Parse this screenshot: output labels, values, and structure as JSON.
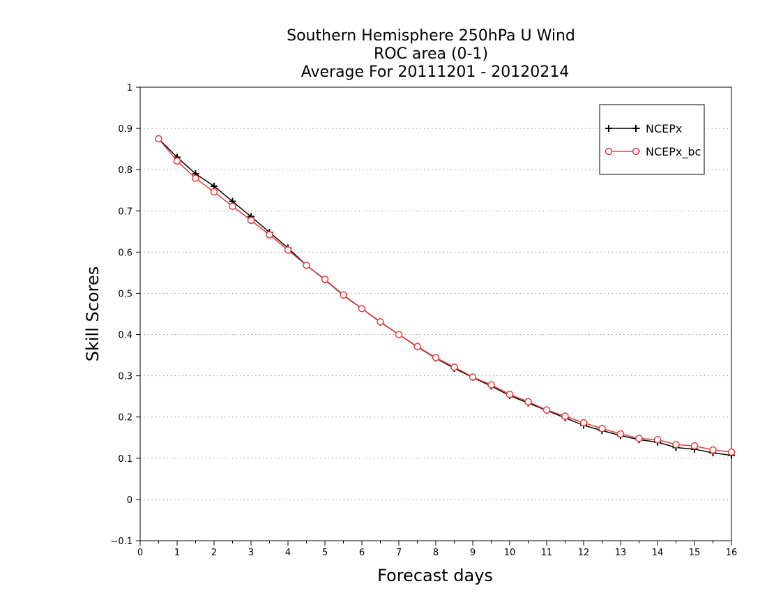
{
  "chart_data": {
    "type": "line",
    "title": [
      "Southern Hemisphere 250hPa U Wind",
      "ROC area (0-1)",
      "Average For 20111201 - 20120214"
    ],
    "xlabel": "Forecast days",
    "ylabel": "Skill Scores",
    "xlim": [
      0,
      16
    ],
    "ylim": [
      -0.1,
      1
    ],
    "x_ticks": [
      0,
      1,
      2,
      3,
      4,
      5,
      6,
      7,
      8,
      9,
      10,
      11,
      12,
      13,
      14,
      15,
      16
    ],
    "y_ticks": [
      -0.1,
      0,
      0.1,
      0.2,
      0.3,
      0.4,
      0.5,
      0.6,
      0.7,
      0.8,
      0.9,
      1
    ],
    "y_tick_labels": [
      "−0.1",
      "0",
      "0.1",
      "0.2",
      "0.3",
      "0.4",
      "0.5",
      "0.6",
      "0.7",
      "0.8",
      "0.9",
      "1"
    ],
    "grid": "horizontal dotted",
    "legend_position": "top-right",
    "x": [
      0.5,
      1,
      1.5,
      2,
      2.5,
      3,
      3.5,
      4,
      4.5,
      5,
      5.5,
      6,
      6.5,
      7,
      7.5,
      8,
      8.5,
      9,
      9.5,
      10,
      10.5,
      11,
      11.5,
      12,
      12.5,
      13,
      13.5,
      14,
      14.5,
      15,
      15.5,
      16
    ],
    "series": [
      {
        "name": "NCEPx",
        "color": "#000000",
        "marker": "plus",
        "values": [
          0.875,
          0.83,
          0.79,
          0.76,
          0.723,
          0.686,
          0.648,
          0.61,
          0.568,
          0.533,
          0.495,
          0.463,
          0.43,
          0.4,
          0.37,
          0.343,
          0.318,
          0.296,
          0.275,
          0.252,
          0.234,
          0.216,
          0.198,
          0.18,
          0.167,
          0.155,
          0.145,
          0.139,
          0.126,
          0.122,
          0.113,
          0.107
        ]
      },
      {
        "name": "NCEPx_bc",
        "color": "#e8393a",
        "marker": "circle",
        "values": [
          0.875,
          0.821,
          0.779,
          0.746,
          0.711,
          0.677,
          0.642,
          0.605,
          0.568,
          0.534,
          0.496,
          0.463,
          0.431,
          0.4,
          0.371,
          0.344,
          0.321,
          0.297,
          0.278,
          0.255,
          0.237,
          0.217,
          0.202,
          0.186,
          0.172,
          0.159,
          0.148,
          0.145,
          0.133,
          0.13,
          0.12,
          0.115
        ]
      }
    ]
  }
}
